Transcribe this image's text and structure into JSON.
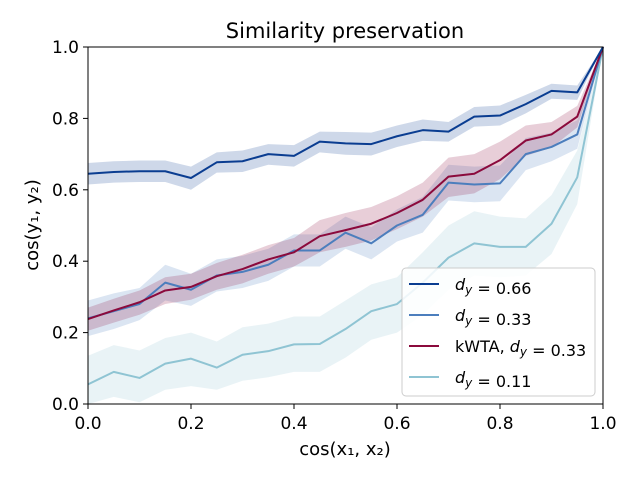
{
  "chart_data": {
    "type": "line",
    "title": "Similarity preservation",
    "xlabel": "cos(x₁, x₂)",
    "ylabel": "cos(y₁, y₂)",
    "xlim": [
      0.0,
      1.0
    ],
    "ylim": [
      0.0,
      1.0
    ],
    "xticks": [
      "0.0",
      "0.2",
      "0.4",
      "0.6",
      "0.8",
      "1.0"
    ],
    "yticks": [
      "0.0",
      "0.2",
      "0.4",
      "0.6",
      "0.8",
      "1.0"
    ],
    "grid": false,
    "legend_position": "lower-right",
    "x": [
      0.0,
      0.05,
      0.1,
      0.15,
      0.2,
      0.25,
      0.3,
      0.35,
      0.4,
      0.45,
      0.5,
      0.55,
      0.6,
      0.65,
      0.7,
      0.75,
      0.8,
      0.85,
      0.9,
      0.95,
      1.0
    ],
    "series": [
      {
        "name": "d_y = 0.66",
        "legend_prefix": "",
        "legend_var": "d",
        "legend_sub": "y",
        "legend_value": "= 0.66",
        "color": "#0a3d91",
        "values": [
          0.645,
          0.65,
          0.652,
          0.652,
          0.633,
          0.677,
          0.68,
          0.7,
          0.695,
          0.735,
          0.73,
          0.728,
          0.75,
          0.767,
          0.763,
          0.805,
          0.808,
          0.84,
          0.877,
          0.873,
          1.0
        ],
        "lower": [
          0.615,
          0.62,
          0.622,
          0.622,
          0.6,
          0.648,
          0.65,
          0.67,
          0.665,
          0.705,
          0.698,
          0.696,
          0.72,
          0.737,
          0.735,
          0.777,
          0.78,
          0.814,
          0.855,
          0.852,
          1.0
        ],
        "upper": [
          0.675,
          0.68,
          0.682,
          0.682,
          0.665,
          0.705,
          0.71,
          0.728,
          0.725,
          0.763,
          0.762,
          0.76,
          0.78,
          0.797,
          0.79,
          0.832,
          0.836,
          0.866,
          0.897,
          0.892,
          1.0
        ]
      },
      {
        "name": "d_y = 0.33",
        "legend_prefix": "",
        "legend_var": "d",
        "legend_sub": "y",
        "legend_value": "= 0.33",
        "color": "#4c7ebd",
        "values": [
          0.24,
          0.26,
          0.28,
          0.34,
          0.32,
          0.36,
          0.37,
          0.39,
          0.43,
          0.43,
          0.48,
          0.45,
          0.5,
          0.53,
          0.62,
          0.615,
          0.618,
          0.7,
          0.72,
          0.755,
          1.0
        ],
        "lower": [
          0.19,
          0.21,
          0.235,
          0.29,
          0.275,
          0.315,
          0.325,
          0.345,
          0.385,
          0.385,
          0.435,
          0.405,
          0.455,
          0.48,
          0.57,
          0.565,
          0.568,
          0.655,
          0.68,
          0.715,
          1.0
        ],
        "upper": [
          0.29,
          0.31,
          0.325,
          0.39,
          0.365,
          0.405,
          0.415,
          0.435,
          0.475,
          0.475,
          0.525,
          0.495,
          0.545,
          0.58,
          0.67,
          0.665,
          0.668,
          0.745,
          0.76,
          0.795,
          1.0
        ]
      },
      {
        "name": "kWTA, d_y = 0.33",
        "legend_prefix": "kWTA, ",
        "legend_var": "d",
        "legend_sub": "y",
        "legend_value": "= 0.33",
        "color": "#8b0a3c",
        "values": [
          0.238,
          0.262,
          0.285,
          0.318,
          0.328,
          0.358,
          0.378,
          0.405,
          0.425,
          0.47,
          0.487,
          0.505,
          0.535,
          0.572,
          0.637,
          0.645,
          0.683,
          0.738,
          0.755,
          0.805,
          1.0
        ],
        "lower": [
          0.205,
          0.228,
          0.25,
          0.28,
          0.292,
          0.32,
          0.338,
          0.365,
          0.385,
          0.425,
          0.44,
          0.458,
          0.49,
          0.525,
          0.58,
          0.59,
          0.63,
          0.695,
          0.718,
          0.775,
          1.0
        ],
        "upper": [
          0.27,
          0.295,
          0.318,
          0.355,
          0.365,
          0.395,
          0.418,
          0.445,
          0.465,
          0.515,
          0.535,
          0.552,
          0.582,
          0.62,
          0.69,
          0.7,
          0.735,
          0.78,
          0.79,
          0.835,
          1.0
        ]
      },
      {
        "name": "d_y = 0.11",
        "legend_prefix": "",
        "legend_var": "d",
        "legend_sub": "y",
        "legend_value": "= 0.11",
        "color": "#8fc4d3",
        "values": [
          0.055,
          0.09,
          0.073,
          0.113,
          0.127,
          0.102,
          0.138,
          0.148,
          0.167,
          0.168,
          0.21,
          0.26,
          0.28,
          0.34,
          0.41,
          0.45,
          0.44,
          0.44,
          0.505,
          0.635,
          1.0
        ],
        "lower": [
          0.0,
          0.02,
          0.005,
          0.04,
          0.05,
          0.04,
          0.065,
          0.075,
          0.09,
          0.09,
          0.13,
          0.18,
          0.2,
          0.25,
          0.32,
          0.36,
          0.355,
          0.36,
          0.42,
          0.56,
          1.0
        ],
        "upper": [
          0.135,
          0.165,
          0.15,
          0.185,
          0.2,
          0.175,
          0.215,
          0.225,
          0.245,
          0.245,
          0.29,
          0.335,
          0.355,
          0.425,
          0.5,
          0.54,
          0.525,
          0.52,
          0.585,
          0.71,
          1.0
        ]
      }
    ]
  }
}
